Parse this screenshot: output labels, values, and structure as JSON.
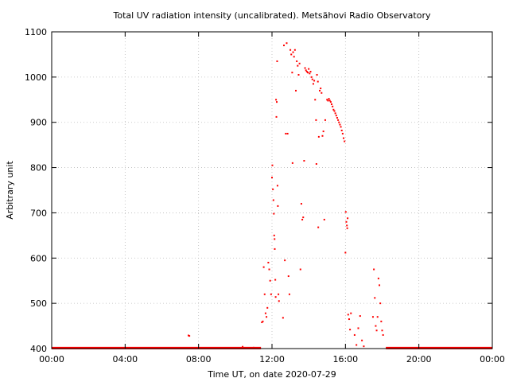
{
  "chart_data": {
    "type": "scatter",
    "title": "Total UV radiation intensity (uncalibrated). Metsähovi Radio Observatory",
    "xlabel": "Time UT, on date 2020-07-29",
    "ylabel": "Arbitrary unit",
    "xlim": [
      0,
      24
    ],
    "ylim": [
      400,
      1100
    ],
    "x_ticks": [
      {
        "value": 0,
        "label": "00:00"
      },
      {
        "value": 4,
        "label": "04:00"
      },
      {
        "value": 8,
        "label": "08:00"
      },
      {
        "value": 12,
        "label": "12:00"
      },
      {
        "value": 16,
        "label": "16:00"
      },
      {
        "value": 20,
        "label": "20:00"
      },
      {
        "value": 24,
        "label": "00:00"
      }
    ],
    "y_ticks": [
      {
        "value": 400,
        "label": "400"
      },
      {
        "value": 500,
        "label": "500"
      },
      {
        "value": 600,
        "label": "600"
      },
      {
        "value": 700,
        "label": "700"
      },
      {
        "value": 800,
        "label": "800"
      },
      {
        "value": 900,
        "label": "900"
      },
      {
        "value": 1000,
        "label": "1000"
      },
      {
        "value": 1100,
        "label": "1100"
      }
    ],
    "grid": true,
    "color": "#ff0000",
    "baseline": {
      "value": 401,
      "segments": [
        [
          0,
          11.4
        ],
        [
          18.2,
          24
        ]
      ]
    },
    "points": [
      [
        7.45,
        429
      ],
      [
        7.5,
        428
      ],
      [
        10.4,
        404
      ],
      [
        11.0,
        402
      ],
      [
        11.45,
        458
      ],
      [
        11.5,
        460
      ],
      [
        11.55,
        580
      ],
      [
        11.6,
        520
      ],
      [
        11.65,
        478
      ],
      [
        11.7,
        470
      ],
      [
        11.75,
        490
      ],
      [
        11.8,
        590
      ],
      [
        11.85,
        575
      ],
      [
        11.9,
        550
      ],
      [
        11.95,
        520
      ],
      [
        12.0,
        778
      ],
      [
        12.02,
        805
      ],
      [
        12.05,
        752
      ],
      [
        12.08,
        728
      ],
      [
        12.1,
        698
      ],
      [
        12.12,
        650
      ],
      [
        12.14,
        642
      ],
      [
        12.15,
        620
      ],
      [
        12.18,
        552
      ],
      [
        12.2,
        514
      ],
      [
        12.22,
        950
      ],
      [
        12.24,
        912
      ],
      [
        12.26,
        945
      ],
      [
        12.28,
        1035
      ],
      [
        12.3,
        760
      ],
      [
        12.32,
        715
      ],
      [
        12.35,
        520
      ],
      [
        12.38,
        505
      ],
      [
        12.6,
        468
      ],
      [
        12.65,
        1070
      ],
      [
        12.7,
        595
      ],
      [
        12.75,
        875
      ],
      [
        12.8,
        1075
      ],
      [
        12.85,
        875
      ],
      [
        12.9,
        560
      ],
      [
        12.95,
        520
      ],
      [
        13.0,
        1060
      ],
      [
        13.05,
        1050
      ],
      [
        13.1,
        1010
      ],
      [
        13.12,
        810
      ],
      [
        13.15,
        1055
      ],
      [
        13.2,
        1045
      ],
      [
        13.25,
        1060
      ],
      [
        13.3,
        970
      ],
      [
        13.35,
        1035
      ],
      [
        13.4,
        1025
      ],
      [
        13.45,
        1005
      ],
      [
        13.5,
        1030
      ],
      [
        13.55,
        575
      ],
      [
        13.6,
        720
      ],
      [
        13.65,
        685
      ],
      [
        13.7,
        690
      ],
      [
        13.75,
        815
      ],
      [
        13.8,
        1020
      ],
      [
        13.85,
        1015
      ],
      [
        13.9,
        1012
      ],
      [
        13.95,
        1010
      ],
      [
        14.0,
        1018
      ],
      [
        14.05,
        1008
      ],
      [
        14.1,
        1012
      ],
      [
        14.15,
        1000
      ],
      [
        14.2,
        995
      ],
      [
        14.25,
        985
      ],
      [
        14.3,
        992
      ],
      [
        14.35,
        950
      ],
      [
        14.4,
        905
      ],
      [
        14.42,
        808
      ],
      [
        14.45,
        1005
      ],
      [
        14.5,
        990
      ],
      [
        14.52,
        668
      ],
      [
        14.55,
        868
      ],
      [
        14.6,
        970
      ],
      [
        14.65,
        975
      ],
      [
        14.7,
        965
      ],
      [
        14.75,
        870
      ],
      [
        14.8,
        880
      ],
      [
        14.85,
        685
      ],
      [
        14.9,
        905
      ],
      [
        15.0,
        950
      ],
      [
        15.05,
        948
      ],
      [
        15.1,
        952
      ],
      [
        15.15,
        948
      ],
      [
        15.2,
        945
      ],
      [
        15.25,
        940
      ],
      [
        15.3,
        935
      ],
      [
        15.35,
        928
      ],
      [
        15.4,
        925
      ],
      [
        15.45,
        920
      ],
      [
        15.5,
        915
      ],
      [
        15.55,
        910
      ],
      [
        15.6,
        905
      ],
      [
        15.65,
        900
      ],
      [
        15.7,
        895
      ],
      [
        15.75,
        890
      ],
      [
        15.8,
        882
      ],
      [
        15.85,
        875
      ],
      [
        15.9,
        865
      ],
      [
        15.95,
        858
      ],
      [
        16.0,
        612
      ],
      [
        16.02,
        702
      ],
      [
        16.05,
        680
      ],
      [
        16.08,
        672
      ],
      [
        16.1,
        666
      ],
      [
        16.12,
        688
      ],
      [
        16.15,
        475
      ],
      [
        16.2,
        465
      ],
      [
        16.25,
        442
      ],
      [
        16.3,
        478
      ],
      [
        16.5,
        430
      ],
      [
        16.6,
        408
      ],
      [
        16.7,
        445
      ],
      [
        16.8,
        472
      ],
      [
        16.9,
        418
      ],
      [
        17.0,
        405
      ],
      [
        17.5,
        470
      ],
      [
        17.55,
        575
      ],
      [
        17.6,
        512
      ],
      [
        17.65,
        450
      ],
      [
        17.7,
        440
      ],
      [
        17.75,
        470
      ],
      [
        17.8,
        555
      ],
      [
        17.85,
        540
      ],
      [
        17.9,
        500
      ],
      [
        17.95,
        460
      ],
      [
        18.0,
        440
      ],
      [
        18.05,
        430
      ]
    ]
  }
}
